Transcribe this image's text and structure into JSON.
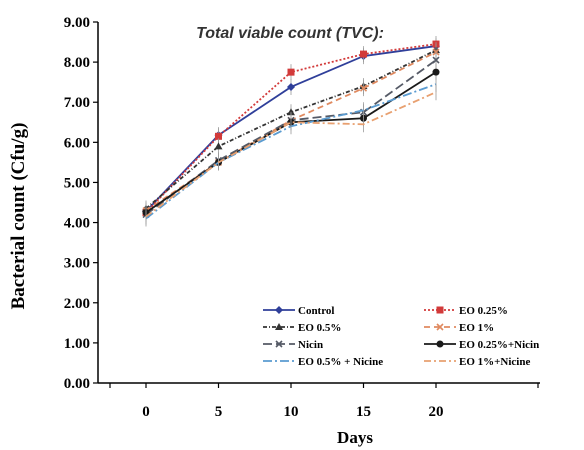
{
  "chart_data": {
    "type": "line",
    "title": "Total viable count (TVC):",
    "xlabel": "Days",
    "ylabel": "Bacterial count (Cfu/g)",
    "x": [
      0,
      5,
      10,
      15,
      20
    ],
    "x_tick_labels": [
      "0",
      "5",
      "10",
      "15",
      "20"
    ],
    "ylim": [
      0,
      9
    ],
    "y_tick_labels": [
      "0.00",
      "1.00",
      "2.00",
      "3.00",
      "4.00",
      "5.00",
      "6.00",
      "7.00",
      "8.00",
      "9.00"
    ],
    "legend_position": "bottom-right",
    "series": [
      {
        "name": "Control",
        "values": [
          4.28,
          6.18,
          7.38,
          8.15,
          8.4
        ],
        "color": "#2f3f9a",
        "dash": "",
        "marker": "diamond"
      },
      {
        "name": "EO 0.25%",
        "values": [
          4.25,
          6.15,
          7.75,
          8.2,
          8.45
        ],
        "color": "#d23a3a",
        "dash": "2,2",
        "marker": "square"
      },
      {
        "name": "EO 0.5%",
        "values": [
          4.35,
          5.9,
          6.75,
          7.4,
          8.3
        ],
        "color": "#333333",
        "dash": "4,2,1,2",
        "marker": "triangle"
      },
      {
        "name": "EO 1%",
        "values": [
          4.3,
          5.5,
          6.55,
          7.35,
          8.25
        ],
        "color": "#e08a60",
        "dash": "6,4",
        "marker": "x"
      },
      {
        "name": "Nicin",
        "values": [
          4.2,
          5.55,
          6.55,
          6.75,
          8.05
        ],
        "color": "#555a66",
        "dash": "9,4",
        "marker": "x"
      },
      {
        "name": "EO 0.25%+Nicin",
        "values": [
          4.25,
          5.5,
          6.5,
          6.6,
          7.75
        ],
        "color": "#1a1a1a",
        "dash": "",
        "marker": "circle"
      },
      {
        "name": "EO 0.5% + Nicine",
        "values": [
          4.1,
          5.5,
          6.4,
          6.8,
          7.45
        ],
        "color": "#5a9bd0",
        "dash": "9,3,2,3",
        "marker": "none"
      },
      {
        "name": "EO 1%+Nicine",
        "values": [
          4.15,
          5.5,
          6.5,
          6.45,
          7.25
        ],
        "color": "#e8a070",
        "dash": "7,3,2,3",
        "marker": "none"
      }
    ]
  }
}
